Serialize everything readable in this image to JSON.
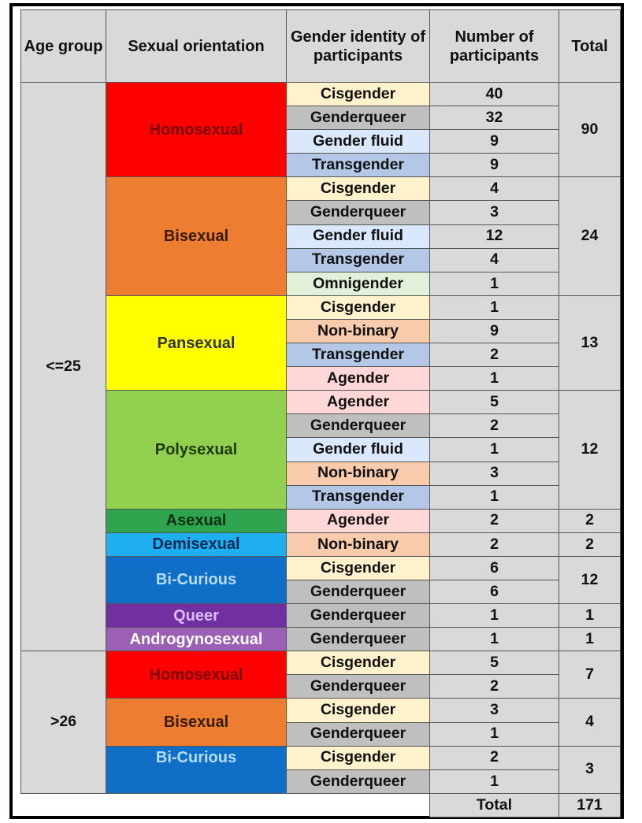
{
  "headers": {
    "age": "Age group",
    "orientation": "Sexual orientation",
    "gender": "Gender identity of participants",
    "number": "Number of participants",
    "total": "Total"
  },
  "groups": [
    {
      "age": "<=25",
      "orientations": [
        {
          "name": "Homosexual",
          "color": "#ff0000",
          "text_color": "#7a0000",
          "total": "90",
          "rows": [
            {
              "gender": "Cisgender",
              "n": "40"
            },
            {
              "gender": "Genderqueer",
              "n": "32"
            },
            {
              "gender": "Gender fluid",
              "n": "9"
            },
            {
              "gender": "Transgender",
              "n": "9"
            }
          ]
        },
        {
          "name": "Bisexual",
          "color": "#ed7d31",
          "text_color": "#3a1a00",
          "total": "24",
          "rows": [
            {
              "gender": "Cisgender",
              "n": "4"
            },
            {
              "gender": "Genderqueer",
              "n": "3"
            },
            {
              "gender": "Gender fluid",
              "n": "12"
            },
            {
              "gender": "Transgender",
              "n": "4"
            },
            {
              "gender": "Omnigender",
              "n": "1"
            }
          ]
        },
        {
          "name": "Pansexual",
          "color": "#ffff00",
          "text_color": "#333333",
          "total": "13",
          "rows": [
            {
              "gender": "Cisgender",
              "n": "1"
            },
            {
              "gender": "Non-binary",
              "n": "9"
            },
            {
              "gender": "Transgender",
              "n": "2"
            },
            {
              "gender": "Agender",
              "n": "1"
            }
          ]
        },
        {
          "name": "Polysexual",
          "color": "#92d050",
          "text_color": "#1f3a0a",
          "total": "12",
          "rows": [
            {
              "gender": "Agender",
              "n": "5"
            },
            {
              "gender": "Genderqueer",
              "n": "2"
            },
            {
              "gender": "Gender fluid",
              "n": "1"
            },
            {
              "gender": "Non-binary",
              "n": "3"
            },
            {
              "gender": "Transgender",
              "n": "1"
            }
          ]
        },
        {
          "name": "Asexual",
          "color": "#2ea44f",
          "text_color": "#0b2e12",
          "total": "2",
          "rows": [
            {
              "gender": "Agender",
              "n": "2"
            }
          ]
        },
        {
          "name": "Demisexual",
          "color": "#1faef0",
          "text_color": "#0b2a55",
          "total": "2",
          "rows": [
            {
              "gender": "Non-binary",
              "n": "2"
            }
          ]
        },
        {
          "name": "Bi-Curious",
          "color": "#0f6fc6",
          "text_color": "#b7dcff",
          "total": "12",
          "rows": [
            {
              "gender": "Cisgender",
              "n": "6"
            },
            {
              "gender": "Genderqueer",
              "n": "6"
            }
          ]
        },
        {
          "name": "Queer",
          "color": "#7030a0",
          "text_color": "#dcbcff",
          "total": "1",
          "rows": [
            {
              "gender": "Genderqueer",
              "n": "1"
            }
          ]
        },
        {
          "name": "Androgynosexual",
          "color": "#9b5fb5",
          "text_color": "#ffffff",
          "total": "1",
          "rows": [
            {
              "gender": "Genderqueer",
              "n": "1"
            }
          ]
        }
      ]
    },
    {
      "age": ">26",
      "orientations": [
        {
          "name": "Homosexual",
          "color": "#ff0000",
          "text_color": "#7a0000",
          "total": "7",
          "rows": [
            {
              "gender": "Cisgender",
              "n": "5"
            },
            {
              "gender": "Genderqueer",
              "n": "2"
            }
          ]
        },
        {
          "name": "Bisexual",
          "color": "#ed7d31",
          "text_color": "#3a1a00",
          "total": "4",
          "rows": [
            {
              "gender": "Cisgender",
              "n": "3"
            },
            {
              "gender": "Genderqueer",
              "n": "1"
            }
          ]
        },
        {
          "name": "Bi-Curious",
          "color": "#0f6fc6",
          "text_color": "#b7dcff",
          "total": "3",
          "align": "top",
          "rows": [
            {
              "gender": "Cisgender",
              "n": "2"
            },
            {
              "gender": "Genderqueer",
              "n": "1"
            }
          ]
        }
      ]
    }
  ],
  "footer": {
    "label": "Total",
    "value": "171"
  }
}
